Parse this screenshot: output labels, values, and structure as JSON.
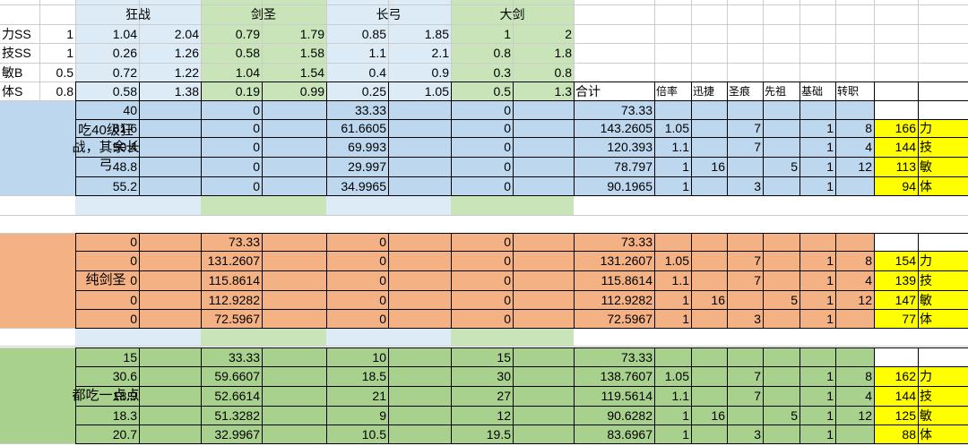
{
  "colors": {
    "blue": "#bdd7ee",
    "green": "#a9d18e",
    "orange": "#f4b183",
    "yellow": "#ffff00",
    "lightblue": "#ddebf7",
    "lightgreen": "#c8e4b8"
  },
  "top": {
    "headers": [
      "狂战",
      "剑圣",
      "长弓",
      "大剑"
    ],
    "rows": [
      {
        "stat": "力SS",
        "k": "1",
        "v": [
          "1.04",
          "2.04",
          "0.79",
          "1.79",
          "0.85",
          "1.85",
          "1",
          "2"
        ]
      },
      {
        "stat": "技SS",
        "k": "1",
        "v": [
          "0.26",
          "1.26",
          "0.58",
          "1.58",
          "1.1",
          "2.1",
          "0.8",
          "1.8"
        ]
      },
      {
        "stat": "敏B",
        "k": "0.5",
        "v": [
          "0.72",
          "1.22",
          "1.04",
          "1.54",
          "0.4",
          "0.9",
          "0.3",
          "0.8"
        ]
      },
      {
        "stat": "体S",
        "k": "0.8",
        "v": [
          "0.58",
          "1.38",
          "0.19",
          "0.99",
          "0.25",
          "1.05",
          "0.5",
          "1.3"
        ]
      }
    ]
  },
  "colHeaders": [
    "合计",
    "倍率",
    "迅捷",
    "圣痕",
    "先祖",
    "基础",
    "转职"
  ],
  "sections": [
    {
      "label": "吃40级狂战，其余长弓",
      "first": {
        "v": [
          "40",
          "0",
          "33.33",
          "0"
        ],
        "total": "73.33"
      },
      "rows": [
        {
          "v": [
            "81.6",
            "0",
            "61.6605",
            "0"
          ],
          "total": "143.2605",
          "ratio": "1.05",
          "xunjie": "",
          "shenghen": "7",
          "xianzu": "",
          "jichu": "1",
          "zhuanzhi": "8",
          "final": "166",
          "stat": "力"
        },
        {
          "v": [
            "50.4",
            "0",
            "69.993",
            "0"
          ],
          "total": "120.393",
          "ratio": "1.1",
          "xunjie": "",
          "shenghen": "7",
          "xianzu": "",
          "jichu": "1",
          "zhuanzhi": "4",
          "final": "144",
          "stat": "技"
        },
        {
          "v": [
            "48.8",
            "0",
            "29.997",
            "0"
          ],
          "total": "78.797",
          "ratio": "1",
          "xunjie": "16",
          "shenghen": "",
          "xianzu": "5",
          "jichu": "1",
          "zhuanzhi": "12",
          "final": "113",
          "stat": "敏"
        },
        {
          "v": [
            "55.2",
            "0",
            "34.9965",
            "0"
          ],
          "total": "90.1965",
          "ratio": "1",
          "xunjie": "",
          "shenghen": "3",
          "xianzu": "",
          "jichu": "1",
          "zhuanzhi": "",
          "final": "94",
          "stat": "体"
        }
      ]
    },
    {
      "label": "纯剑圣",
      "first": {
        "v": [
          "0",
          "73.33",
          "0",
          "0"
        ],
        "total": "73.33"
      },
      "rows": [
        {
          "v": [
            "0",
            "131.2607",
            "0",
            "0"
          ],
          "total": "131.2607",
          "ratio": "1.05",
          "xunjie": "",
          "shenghen": "7",
          "xianzu": "",
          "jichu": "1",
          "zhuanzhi": "8",
          "final": "154",
          "stat": "力"
        },
        {
          "v": [
            "0",
            "115.8614",
            "0",
            "0"
          ],
          "total": "115.8614",
          "ratio": "1.1",
          "xunjie": "",
          "shenghen": "7",
          "xianzu": "",
          "jichu": "1",
          "zhuanzhi": "4",
          "final": "139",
          "stat": "技"
        },
        {
          "v": [
            "0",
            "112.9282",
            "0",
            "0"
          ],
          "total": "112.9282",
          "ratio": "1",
          "xunjie": "16",
          "shenghen": "",
          "xianzu": "5",
          "jichu": "1",
          "zhuanzhi": "12",
          "final": "147",
          "stat": "敏"
        },
        {
          "v": [
            "0",
            "72.5967",
            "0",
            "0"
          ],
          "total": "72.5967",
          "ratio": "1",
          "xunjie": "",
          "shenghen": "3",
          "xianzu": "",
          "jichu": "1",
          "zhuanzhi": "",
          "final": "77",
          "stat": "体"
        }
      ]
    },
    {
      "label": "都吃一点点",
      "first": {
        "v": [
          "15",
          "33.33",
          "10",
          "15"
        ],
        "total": "73.33"
      },
      "rows": [
        {
          "v": [
            "30.6",
            "59.6607",
            "18.5",
            "30"
          ],
          "total": "138.7607",
          "ratio": "1.05",
          "xunjie": "",
          "shenghen": "7",
          "xianzu": "",
          "jichu": "1",
          "zhuanzhi": "8",
          "final": "162",
          "stat": "力"
        },
        {
          "v": [
            "18.9",
            "52.6614",
            "21",
            "27"
          ],
          "total": "119.5614",
          "ratio": "1.1",
          "xunjie": "",
          "shenghen": "7",
          "xianzu": "",
          "jichu": "1",
          "zhuanzhi": "4",
          "final": "144",
          "stat": "技"
        },
        {
          "v": [
            "18.3",
            "51.3282",
            "9",
            "12"
          ],
          "total": "90.6282",
          "ratio": "1",
          "xunjie": "16",
          "shenghen": "",
          "xianzu": "5",
          "jichu": "1",
          "zhuanzhi": "12",
          "final": "125",
          "stat": "敏"
        },
        {
          "v": [
            "20.7",
            "32.9967",
            "10.5",
            "19.5"
          ],
          "total": "83.6967",
          "ratio": "1",
          "xunjie": "",
          "shenghen": "3",
          "xianzu": "",
          "jichu": "1",
          "zhuanzhi": "",
          "final": "88",
          "stat": "体"
        }
      ]
    }
  ]
}
